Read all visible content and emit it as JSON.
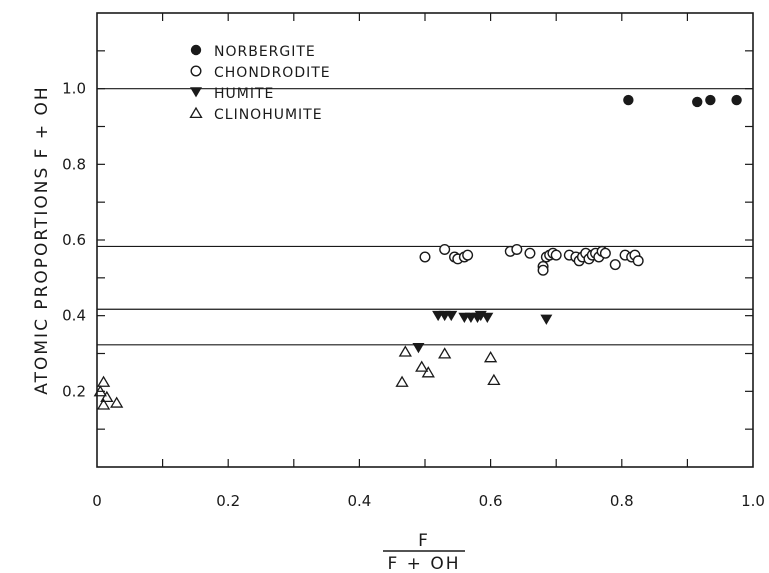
{
  "chart_data": {
    "type": "scatter",
    "ylabel": "ATOMIC   PROPORTIONS   F + OH",
    "xlabel_numerator": "F",
    "xlabel_denominator": "F + OH",
    "xlim": [
      0,
      1.0
    ],
    "ylim": [
      0,
      1.2
    ],
    "x_ticks": [
      0,
      0.2,
      0.4,
      0.6,
      0.8,
      1.0
    ],
    "x_tick_labels": [
      "0",
      "0.2",
      "0.4",
      "0.6",
      "0.8",
      "1.0"
    ],
    "y_ticks": [
      0.2,
      0.4,
      0.6,
      0.8,
      1.0
    ],
    "y_tick_labels": [
      "0.2",
      "0.4",
      "0.6",
      "0.8",
      "1.0"
    ],
    "reference_lines_y": [
      1.0,
      0.583,
      0.417,
      0.323
    ],
    "grid": false,
    "legend_position": "top-left",
    "series": [
      {
        "name": "NORBERGITE",
        "marker": "filled-circle",
        "x": [
          0.81,
          0.915,
          0.935,
          0.975
        ],
        "y": [
          0.97,
          0.965,
          0.97,
          0.97
        ]
      },
      {
        "name": "CHONDRODITE",
        "marker": "open-circle",
        "x": [
          0.5,
          0.53,
          0.545,
          0.55,
          0.56,
          0.565,
          0.63,
          0.64,
          0.66,
          0.68,
          0.68,
          0.685,
          0.69,
          0.695,
          0.7,
          0.72,
          0.73,
          0.735,
          0.74,
          0.745,
          0.75,
          0.755,
          0.76,
          0.765,
          0.77,
          0.775,
          0.79,
          0.805,
          0.815,
          0.82,
          0.825
        ],
        "y": [
          0.555,
          0.575,
          0.555,
          0.55,
          0.555,
          0.56,
          0.57,
          0.575,
          0.565,
          0.53,
          0.52,
          0.555,
          0.56,
          0.565,
          0.56,
          0.56,
          0.555,
          0.545,
          0.555,
          0.565,
          0.55,
          0.56,
          0.565,
          0.555,
          0.57,
          0.565,
          0.535,
          0.56,
          0.555,
          0.56,
          0.545
        ]
      },
      {
        "name": "HUMITE",
        "marker": "filled-triangle-down",
        "x": [
          0.52,
          0.53,
          0.54,
          0.56,
          0.57,
          0.58,
          0.585,
          0.595,
          0.685,
          0.49
        ],
        "y": [
          0.4,
          0.4,
          0.4,
          0.395,
          0.395,
          0.395,
          0.4,
          0.395,
          0.39,
          0.315
        ]
      },
      {
        "name": "CLINOHUMITE",
        "marker": "open-triangle-up",
        "x": [
          0.01,
          0.005,
          0.015,
          0.01,
          0.03,
          0.465,
          0.47,
          0.495,
          0.505,
          0.53,
          0.6,
          0.605
        ],
        "y": [
          0.225,
          0.2,
          0.185,
          0.165,
          0.17,
          0.225,
          0.305,
          0.265,
          0.25,
          0.3,
          0.29,
          0.23
        ]
      }
    ]
  }
}
